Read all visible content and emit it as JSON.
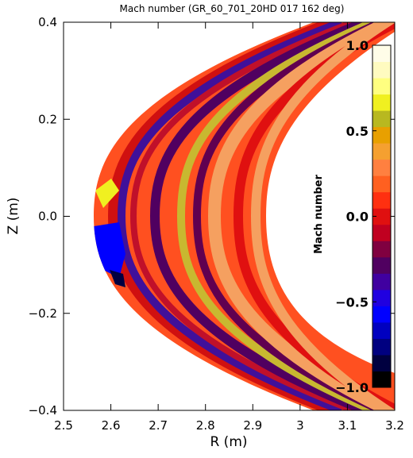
{
  "chart_data": {
    "type": "contour",
    "title": "Mach number (GR_60_701_20HD 017 162 deg)",
    "x_label": "R (m)",
    "y_label": "Z (m)",
    "xlim": [
      2.5,
      3.2
    ],
    "xticks": [
      2.5,
      2.6,
      2.7,
      2.8,
      2.9,
      3.0,
      3.1,
      3.2
    ],
    "ylim": [
      -0.4,
      0.4
    ],
    "yticks": [
      {
        "value": -0.4,
        "label": "−0.4"
      },
      {
        "value": -0.2,
        "label": "−0.2"
      },
      {
        "value": 0,
        "label": "0.0"
      },
      0.2,
      0.4
    ],
    "colorbar": {
      "label": "Mach number",
      "lim": [
        -1,
        1
      ],
      "ticks": [
        {
          "value": -1,
          "label": "−1.0"
        },
        {
          "value": -0.5,
          "label": "−0.5"
        },
        {
          "value": 0,
          "label": "0.0"
        },
        0.5,
        {
          "value": 1,
          "label": "1.0"
        }
      ],
      "colors": [
        "#000000",
        "#000040",
        "#000080",
        "#0000c0",
        "#0000ff",
        "#2000e0",
        "#4000a0",
        "#500060",
        "#800040",
        "#c00020",
        "#e01010",
        "#ff3010",
        "#ff6020",
        "#ff8040",
        "#f5a030",
        "#e8a000",
        "#b8b820",
        "#f0f020",
        "#ffff80",
        "#fffbc0",
        "#fffde8"
      ]
    }
  }
}
